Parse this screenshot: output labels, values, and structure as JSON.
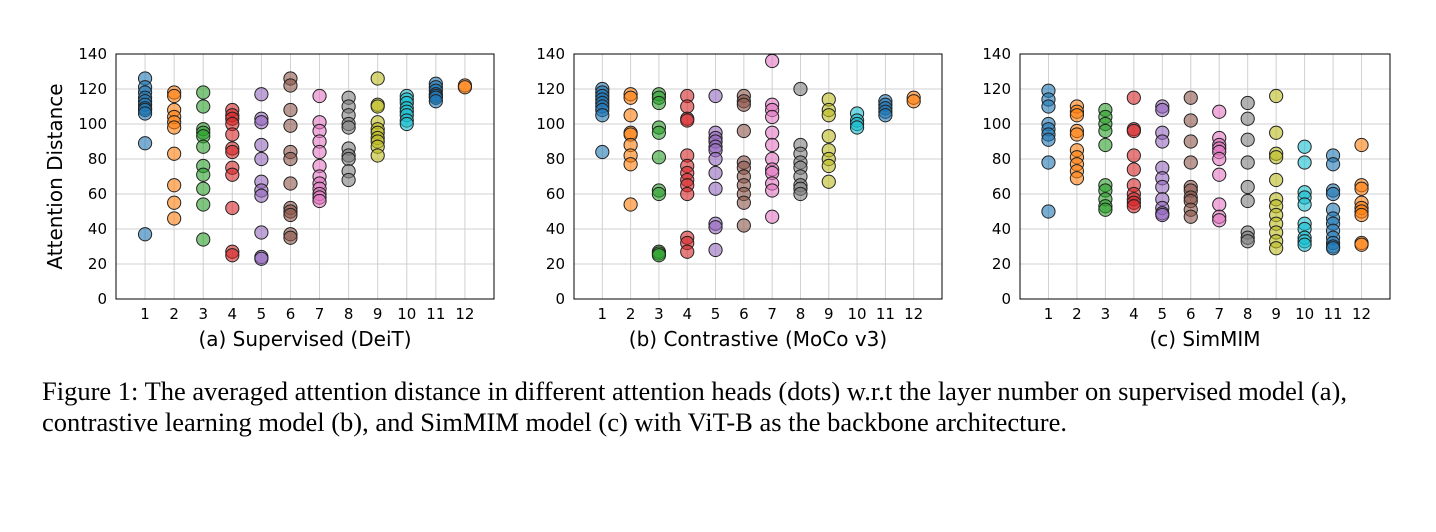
{
  "figure": {
    "caption": "Figure 1: The averaged attention distance in different attention heads (dots) w.r.t the layer number on supervised model (a), contrastive learning model (b), and SimMIM model (c) with ViT-B as the backbone architecture."
  },
  "layer_colors": [
    "#1f77b4",
    "#ff7f0e",
    "#2ca02c",
    "#d62728",
    "#9467bd",
    "#8c564b",
    "#e377c2",
    "#7f7f7f",
    "#bcbd22",
    "#17becf",
    "#1f77b4",
    "#ff7f0e"
  ],
  "chart_data": [
    {
      "type": "scatter",
      "title": "(a) Supervised (DeiT)",
      "xlabel": "",
      "ylabel": "Attention Distance",
      "xlim": [
        0,
        13
      ],
      "ylim": [
        0,
        140
      ],
      "xticks": [
        1,
        2,
        3,
        4,
        5,
        6,
        7,
        8,
        9,
        10,
        11,
        12
      ],
      "yticks": [
        0,
        20,
        40,
        60,
        80,
        100,
        120,
        140
      ],
      "grid": true,
      "series": [
        {
          "x": 1,
          "values": [
            126,
            121,
            118,
            115,
            113,
            111,
            109,
            108,
            106,
            89,
            37
          ]
        },
        {
          "x": 2,
          "values": [
            118,
            116,
            108,
            104,
            101,
            98,
            83,
            65,
            55,
            46
          ]
        },
        {
          "x": 3,
          "values": [
            118,
            110,
            97,
            95,
            93,
            87,
            76,
            71,
            63,
            54,
            34
          ]
        },
        {
          "x": 4,
          "values": [
            108,
            105,
            103,
            100,
            94,
            86,
            84,
            75,
            71,
            52,
            27,
            25
          ]
        },
        {
          "x": 5,
          "values": [
            117,
            103,
            101,
            88,
            80,
            67,
            62,
            59,
            38,
            24,
            23
          ]
        },
        {
          "x": 6,
          "values": [
            126,
            122,
            108,
            99,
            84,
            80,
            66,
            52,
            50,
            48,
            37,
            35
          ]
        },
        {
          "x": 7,
          "values": [
            116,
            101,
            96,
            90,
            84,
            76,
            70,
            66,
            63,
            60,
            58,
            56
          ]
        },
        {
          "x": 8,
          "values": [
            115,
            110,
            105,
            100,
            98,
            86,
            82,
            80,
            73,
            68
          ]
        },
        {
          "x": 9,
          "values": [
            126,
            111,
            110,
            101,
            97,
            95,
            92,
            90,
            87,
            82
          ]
        },
        {
          "x": 10,
          "values": [
            116,
            114,
            112,
            109,
            107,
            105,
            102,
            100
          ]
        },
        {
          "x": 11,
          "values": [
            123,
            121,
            119,
            117,
            116,
            115,
            113
          ]
        },
        {
          "x": 12,
          "values": [
            122,
            121
          ]
        }
      ]
    },
    {
      "type": "scatter",
      "title": "(b) Contrastive (MoCo v3)",
      "xlabel": "",
      "ylabel": "",
      "xlim": [
        0,
        13
      ],
      "ylim": [
        0,
        140
      ],
      "xticks": [
        1,
        2,
        3,
        4,
        5,
        6,
        7,
        8,
        9,
        10,
        11,
        12
      ],
      "yticks": [
        0,
        20,
        40,
        60,
        80,
        100,
        120,
        140
      ],
      "grid": true,
      "series": [
        {
          "x": 1,
          "values": [
            120,
            118,
            116,
            114,
            112,
            110,
            108,
            105,
            84
          ]
        },
        {
          "x": 2,
          "values": [
            117,
            115,
            105,
            95,
            94,
            88,
            82,
            77,
            54
          ]
        },
        {
          "x": 3,
          "values": [
            117,
            115,
            112,
            98,
            95,
            81,
            62,
            60,
            27,
            26,
            25
          ]
        },
        {
          "x": 4,
          "values": [
            116,
            110,
            103,
            102,
            82,
            76,
            72,
            68,
            65,
            60,
            35,
            32,
            27
          ]
        },
        {
          "x": 5,
          "values": [
            116,
            95,
            92,
            90,
            87,
            85,
            80,
            72,
            63,
            43,
            41,
            28
          ]
        },
        {
          "x": 6,
          "values": [
            116,
            113,
            111,
            96,
            78,
            75,
            70,
            65,
            60,
            55,
            42
          ]
        },
        {
          "x": 7,
          "values": [
            136,
            111,
            108,
            104,
            95,
            88,
            80,
            74,
            72,
            66,
            62,
            47
          ]
        },
        {
          "x": 8,
          "values": [
            120,
            88,
            83,
            78,
            75,
            70,
            65,
            63,
            60
          ]
        },
        {
          "x": 9,
          "values": [
            114,
            108,
            105,
            93,
            85,
            80,
            76,
            67
          ]
        },
        {
          "x": 10,
          "values": [
            106,
            102,
            100,
            98
          ]
        },
        {
          "x": 11,
          "values": [
            113,
            111,
            109,
            107,
            105
          ]
        },
        {
          "x": 12,
          "values": [
            115,
            113
          ]
        }
      ]
    },
    {
      "type": "scatter",
      "title": "(c) SimMIM",
      "xlabel": "",
      "ylabel": "",
      "xlim": [
        0,
        13
      ],
      "ylim": [
        0,
        140
      ],
      "xticks": [
        1,
        2,
        3,
        4,
        5,
        6,
        7,
        8,
        9,
        10,
        11,
        12
      ],
      "yticks": [
        0,
        20,
        40,
        60,
        80,
        100,
        120,
        140
      ],
      "grid": true,
      "series": [
        {
          "x": 1,
          "values": [
            119,
            114,
            110,
            100,
            97,
            94,
            91,
            78,
            50
          ]
        },
        {
          "x": 2,
          "values": [
            110,
            107,
            105,
            96,
            94,
            85,
            81,
            77,
            73,
            69
          ]
        },
        {
          "x": 3,
          "values": [
            108,
            104,
            100,
            96,
            88,
            65,
            62,
            57,
            53,
            51
          ]
        },
        {
          "x": 4,
          "values": [
            115,
            97,
            96,
            82,
            74,
            65,
            60,
            57,
            55,
            53
          ]
        },
        {
          "x": 5,
          "values": [
            110,
            108,
            95,
            90,
            75,
            69,
            64,
            57,
            52,
            49,
            48
          ]
        },
        {
          "x": 6,
          "values": [
            115,
            102,
            90,
            78,
            64,
            62,
            58,
            56,
            51,
            47
          ]
        },
        {
          "x": 7,
          "values": [
            107,
            92,
            88,
            86,
            84,
            80,
            71,
            54,
            47,
            45
          ]
        },
        {
          "x": 8,
          "values": [
            112,
            103,
            91,
            78,
            64,
            56,
            38,
            35,
            33
          ]
        },
        {
          "x": 9,
          "values": [
            116,
            95,
            83,
            81,
            68,
            57,
            53,
            48,
            43,
            38,
            33,
            29
          ]
        },
        {
          "x": 10,
          "values": [
            87,
            78,
            61,
            58,
            54,
            43,
            40,
            35,
            33,
            31
          ]
        },
        {
          "x": 11,
          "values": [
            82,
            77,
            62,
            60,
            51,
            46,
            43,
            39,
            35,
            32,
            30,
            29
          ]
        },
        {
          "x": 12,
          "values": [
            88,
            65,
            63,
            55,
            52,
            50,
            48,
            32,
            31
          ]
        }
      ]
    }
  ]
}
